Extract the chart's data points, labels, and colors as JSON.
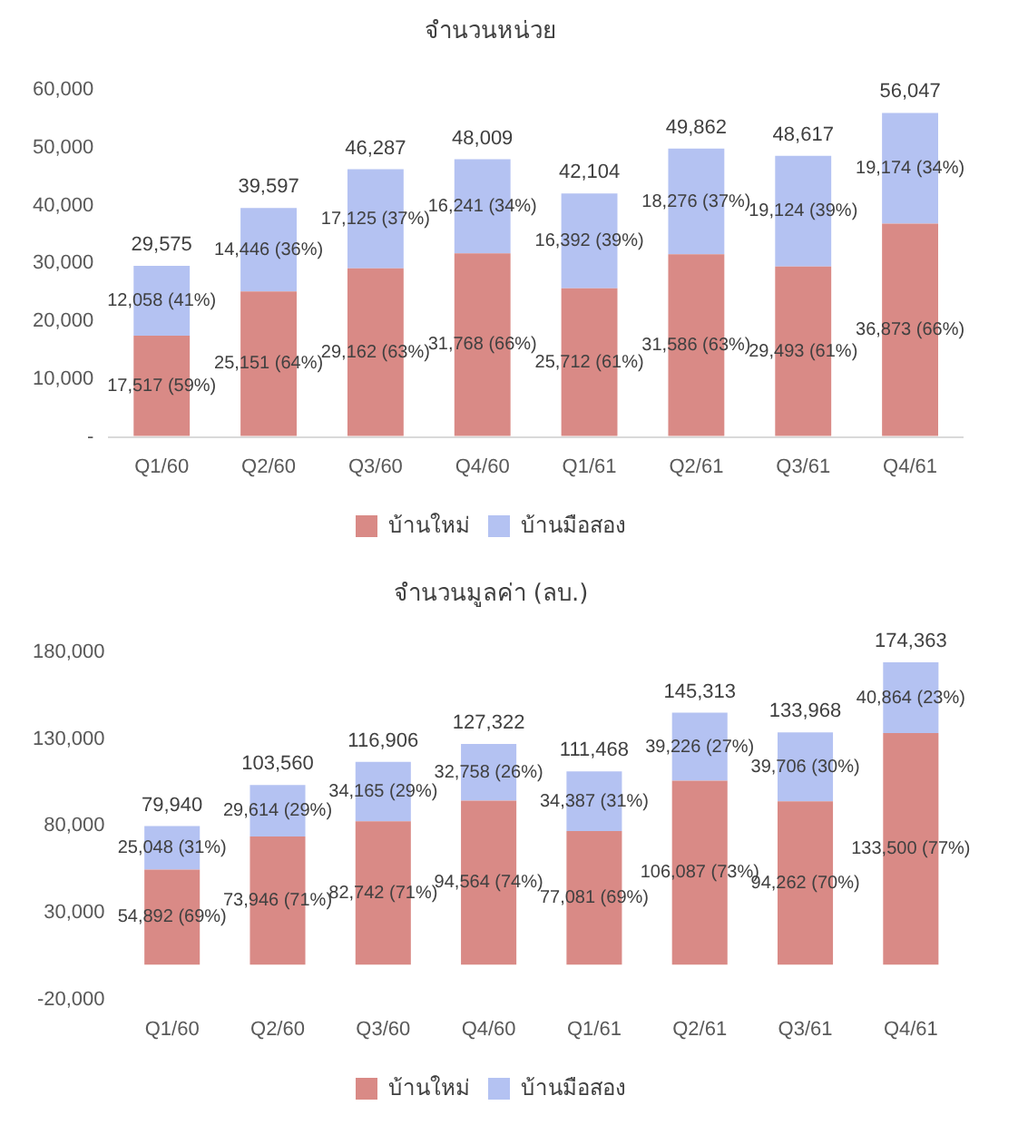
{
  "chart_data": [
    {
      "type": "bar",
      "title": "จำนวนหน่วย",
      "stacked": true,
      "legend": "bottom",
      "grid": false,
      "categories": [
        "Q1/60",
        "Q2/60",
        "Q3/60",
        "Q4/60",
        "Q1/61",
        "Q2/61",
        "Q3/61",
        "Q4/61"
      ],
      "ylim": [
        0,
        60000
      ],
      "yticks": [
        {
          "value": 0,
          "label": "-"
        },
        {
          "value": 10000,
          "label": "10,000"
        },
        {
          "value": 20000,
          "label": "20,000"
        },
        {
          "value": 30000,
          "label": "30,000"
        },
        {
          "value": 40000,
          "label": "40,000"
        },
        {
          "value": 50000,
          "label": "50,000"
        },
        {
          "value": 60000,
          "label": "60,000"
        }
      ],
      "series": [
        {
          "name": "บ้านใหม่",
          "color": "#d98a86",
          "values": [
            17517,
            25151,
            29162,
            31768,
            25712,
            31586,
            29493,
            36873
          ],
          "value_labels": [
            "17,517 (59%)",
            "25,151 (64%)",
            "29,162 (63%)",
            "31,768 (66%)",
            "25,712 (61%)",
            "31,586 (63%)",
            "29,493 (61%)",
            "36,873 (66%)"
          ]
        },
        {
          "name": "บ้านมือสอง",
          "color": "#b4c2f2",
          "values": [
            12058,
            14446,
            17125,
            16241,
            16392,
            18276,
            19124,
            19174
          ],
          "value_labels": [
            "12,058 (41%)",
            "14,446 (36%)",
            "17,125 (37%)",
            "16,241 (34%)",
            "16,392 (39%)",
            "18,276 (37%)",
            "19,124 (39%)",
            "19,174 (34%)"
          ]
        }
      ],
      "totals": [
        "29,575",
        "39,597",
        "46,287",
        "48,009",
        "42,104",
        "49,862",
        "48,617",
        "56,047"
      ]
    },
    {
      "type": "bar",
      "title": "จำนวนมูลค่า (ลบ.)",
      "stacked": true,
      "legend": "bottom",
      "grid": false,
      "categories": [
        "Q1/60",
        "Q2/60",
        "Q3/60",
        "Q4/60",
        "Q1/61",
        "Q2/61",
        "Q3/61",
        "Q4/61"
      ],
      "ylim": [
        -20000,
        180000
      ],
      "yticks": [
        {
          "value": -20000,
          "label": "-20,000"
        },
        {
          "value": 30000,
          "label": "30,000"
        },
        {
          "value": 80000,
          "label": "80,000"
        },
        {
          "value": 130000,
          "label": "130,000"
        },
        {
          "value": 180000,
          "label": "180,000"
        }
      ],
      "series": [
        {
          "name": "บ้านใหม่",
          "color": "#d98a86",
          "values": [
            54892,
            73946,
            82742,
            94564,
            77081,
            106087,
            94262,
            133500
          ],
          "value_labels": [
            "54,892 (69%)",
            "73,946 (71%)",
            "82,742 (71%)",
            "94,564 (74%)",
            "77,081 (69%)",
            "106,087 (73%)",
            "94,262 (70%)",
            "133,500 (77%)"
          ]
        },
        {
          "name": "บ้านมือสอง",
          "color": "#b4c2f2",
          "values": [
            25048,
            29614,
            34165,
            32758,
            34387,
            39226,
            39706,
            40864
          ],
          "value_labels": [
            "25,048 (31%)",
            "29,614 (29%)",
            "34,165 (29%)",
            "32,758 (26%)",
            "34,387 (31%)",
            "39,226 (27%)",
            "39,706 (30%)",
            "40,864 (23%)"
          ]
        }
      ],
      "totals": [
        "79,940",
        "103,560",
        "116,906",
        "127,322",
        "111,468",
        "145,313",
        "133,968",
        "174,363"
      ]
    }
  ]
}
